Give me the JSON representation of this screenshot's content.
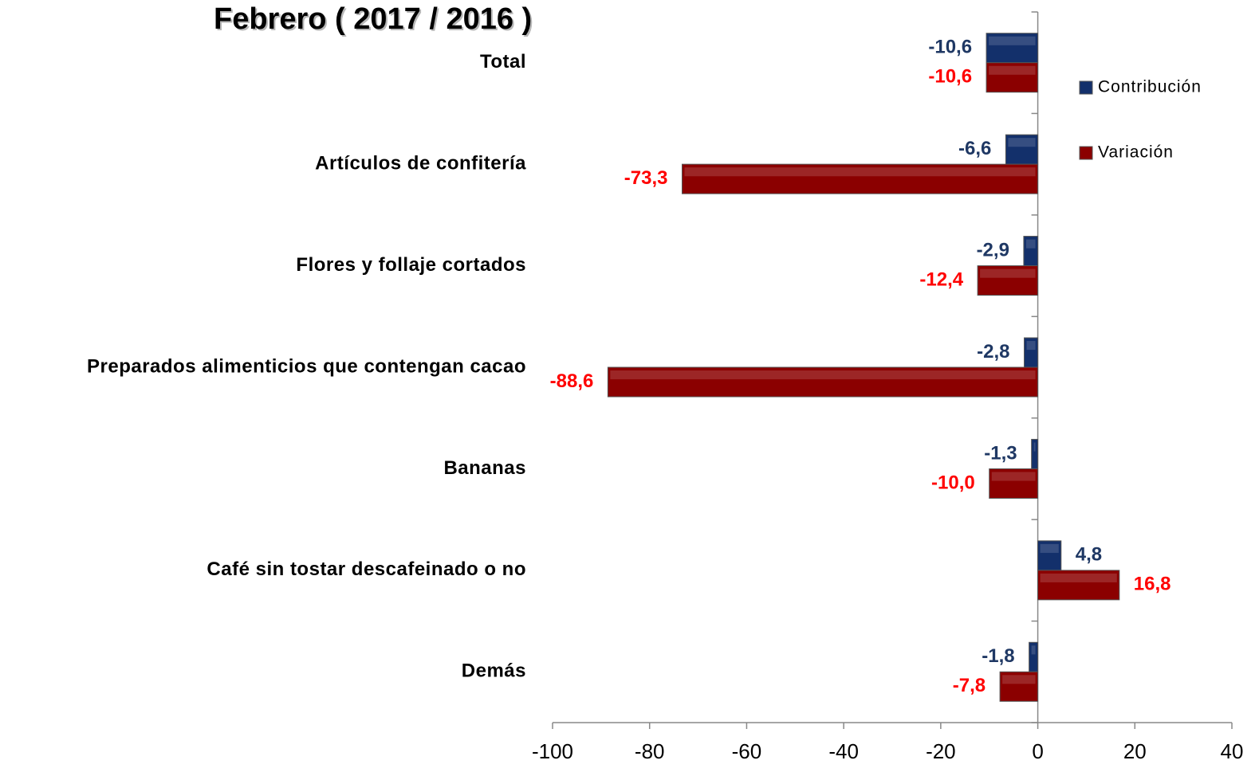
{
  "chart_data": {
    "type": "bar",
    "orientation": "horizontal",
    "title": "Febrero ( 2017 / 2016 )",
    "categories": [
      "Total",
      "Artículos de confitería",
      "Flores y follaje cortados",
      "Preparados alimenticios que contengan cacao",
      "Bananas",
      "Café sin tostar descafeinado o no",
      "Demás"
    ],
    "series": [
      {
        "name": "Contribución",
        "color": "#13306b",
        "label_color": "#1f3864",
        "values": [
          -10.6,
          -6.6,
          -2.9,
          -2.8,
          -1.3,
          4.8,
          -1.8
        ],
        "value_labels": [
          "-10,6",
          "-6,6",
          "-2,9",
          "-2,8",
          "-1,3",
          "4,8",
          "-1,8"
        ]
      },
      {
        "name": "Variación",
        "color": "#8b0000",
        "label_color": "#ff0000",
        "values": [
          -10.6,
          -73.3,
          -12.4,
          -88.6,
          -10.0,
          16.8,
          -7.8
        ],
        "value_labels": [
          "-10,6",
          "-73,3",
          "-12,4",
          "-88,6",
          "-10,0",
          "16,8",
          "-7,8"
        ]
      }
    ],
    "xlim": [
      -100,
      40
    ],
    "xticks": [
      -100,
      -80,
      -60,
      -40,
      -20,
      0,
      20,
      40
    ],
    "legend": "right"
  }
}
